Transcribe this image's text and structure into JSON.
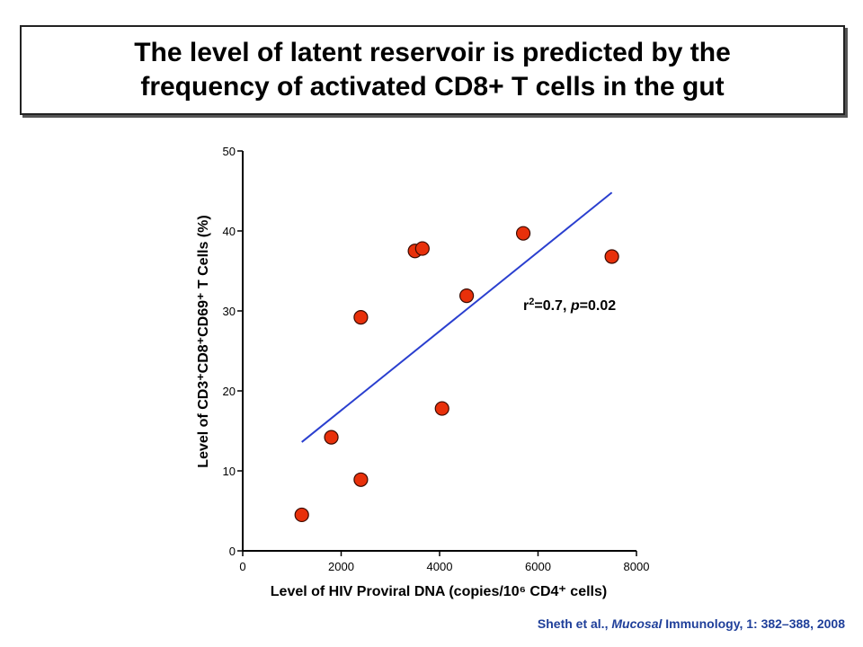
{
  "title_lines": [
    "The level of latent reservoir is predicted by the",
    "frequency of activated CD8+  T cells in the gut"
  ],
  "citation": {
    "prefix": "Sheth et al., ",
    "journal_italic": "Mucosal",
    "suffix": " Immunology, 1: 382–388, 2008",
    "color": "#1f3f9a"
  },
  "chart_data": {
    "type": "scatter",
    "xlabel": "Level of HIV Proviral DNA (copies/10⁶ CD4⁺ cells)",
    "ylabel": "Level of CD3⁺CD8⁺CD69⁺ T Cells (%)",
    "xlim": [
      0,
      8000
    ],
    "ylim": [
      0,
      50
    ],
    "xticks": [
      0,
      2000,
      4000,
      6000,
      8000
    ],
    "yticks": [
      0,
      10,
      20,
      30,
      40,
      50
    ],
    "grid": false,
    "series": [
      {
        "points": [
          {
            "x": 1200,
            "y": 4.5
          },
          {
            "x": 1800,
            "y": 14.2
          },
          {
            "x": 2400,
            "y": 8.9
          },
          {
            "x": 2400,
            "y": 29.2
          },
          {
            "x": 3500,
            "y": 37.5
          },
          {
            "x": 3650,
            "y": 37.8
          },
          {
            "x": 4050,
            "y": 17.8
          },
          {
            "x": 4550,
            "y": 31.9
          },
          {
            "x": 5700,
            "y": 39.7
          },
          {
            "x": 7500,
            "y": 36.8
          }
        ],
        "marker_color": "#e8300a"
      }
    ],
    "regression_line": {
      "x": [
        1200,
        7500
      ],
      "y": [
        13.6,
        44.8
      ],
      "color": "#2a3fcf"
    },
    "annotation": {
      "r_text": "r",
      "r_sup": "2",
      "eq_text": "=0.7, ",
      "p_text": "p",
      "p_eq_text": "=0.02"
    }
  }
}
